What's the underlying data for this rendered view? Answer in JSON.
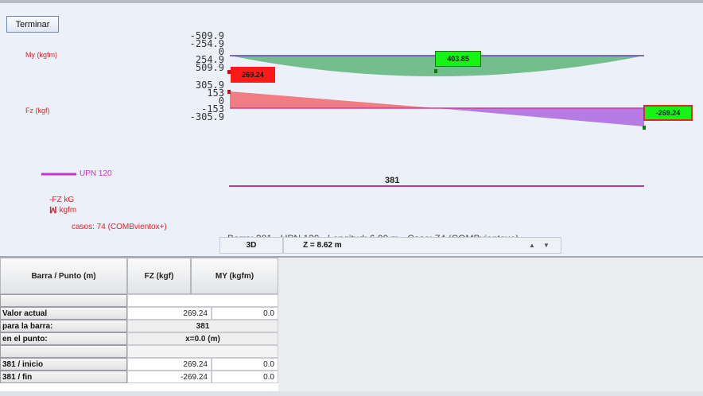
{
  "toolbar": {
    "terminar_label": "Terminar",
    "view_label": "3D",
    "z_label": "Z = 8.62 m",
    "spin_up": "▲",
    "spin_down": "▼"
  },
  "chart": {
    "my_label": "My (kgfm)",
    "fz_label": "Fz (kgf)",
    "my_ticks": "-509.9\n-254.9\n0\n254.9\n509.9",
    "fz_ticks": "305.9\n153\n0\n-153\n-305.9",
    "box_my_left": "269.24",
    "box_my_mid": "403.85",
    "box_fz_right": "-269.24",
    "bar_id": "381",
    "legend_section": "UPN 120",
    "legend_fz": "-FZ kG",
    "legend_my": "kgfm",
    "legend_cases": "casos: 74 (COMBvientox+)",
    "info_text": "Barra: 381 - UPN 120 - Longitud: 6.00 m - Caso: 74 (COMBvientox+)",
    "colors": {
      "my_fill": "#5fb57a",
      "fz_pos_fill": "#f07c84",
      "fz_neg_fill": "#b77be6",
      "section_line": "#cc3399",
      "red_text": "#e02424",
      "highlight_box": "#14f514"
    }
  },
  "table": {
    "headers": [
      "Barra / Punto (m)",
      "FZ (kgf)",
      "MY (kgfm)"
    ],
    "rows": [
      {
        "label": "",
        "fz": "",
        "my": ""
      },
      {
        "label": "Valor actual",
        "fz": "269.24",
        "my": "0.0"
      },
      {
        "label": "para la barra:",
        "merged": "381"
      },
      {
        "label": "en el punto:",
        "merged": "x=0.0 (m)"
      },
      {
        "label": "",
        "fz": "",
        "my": ""
      },
      {
        "label": "381 / inicio",
        "fz": "269.24",
        "my": "0.0"
      },
      {
        "label": "381 / fin",
        "fz": "-269.24",
        "my": "0.0"
      }
    ]
  }
}
